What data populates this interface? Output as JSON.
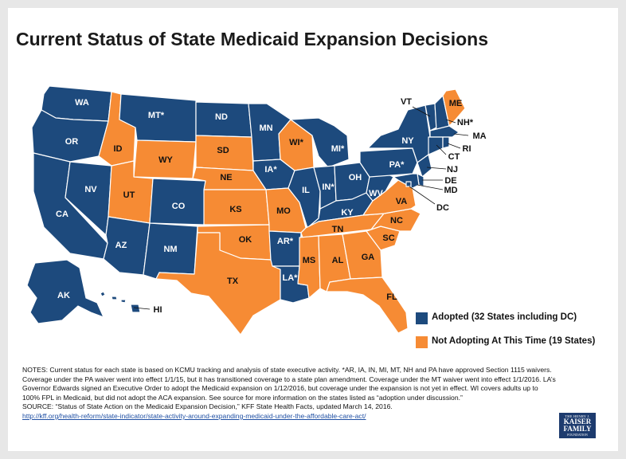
{
  "title": "Current Status of State Medicaid Expansion Decisions",
  "colors": {
    "adopted": "#1d4a7d",
    "not_adopting": "#f68b34"
  },
  "legend": {
    "adopted": "Adopted (32 States including DC)",
    "not_adopting": "Not Adopting At This Time (19 States)"
  },
  "states": {
    "WA": {
      "label": "WA",
      "status": "adopted"
    },
    "OR": {
      "label": "OR",
      "status": "adopted"
    },
    "CA": {
      "label": "CA",
      "status": "adopted"
    },
    "NV": {
      "label": "NV",
      "status": "adopted"
    },
    "ID": {
      "label": "ID",
      "status": "not_adopting"
    },
    "MT": {
      "label": "MT*",
      "status": "adopted"
    },
    "WY": {
      "label": "WY",
      "status": "not_adopting"
    },
    "UT": {
      "label": "UT",
      "status": "not_adopting"
    },
    "AZ": {
      "label": "AZ",
      "status": "adopted"
    },
    "CO": {
      "label": "CO",
      "status": "adopted"
    },
    "NM": {
      "label": "NM",
      "status": "adopted"
    },
    "ND": {
      "label": "ND",
      "status": "adopted"
    },
    "SD": {
      "label": "SD",
      "status": "not_adopting"
    },
    "NE": {
      "label": "NE",
      "status": "not_adopting"
    },
    "KS": {
      "label": "KS",
      "status": "not_adopting"
    },
    "OK": {
      "label": "OK",
      "status": "not_adopting"
    },
    "TX": {
      "label": "TX",
      "status": "not_adopting"
    },
    "MN": {
      "label": "MN",
      "status": "adopted"
    },
    "IA": {
      "label": "IA*",
      "status": "adopted"
    },
    "MO": {
      "label": "MO",
      "status": "not_adopting"
    },
    "AR": {
      "label": "AR*",
      "status": "adopted"
    },
    "LA": {
      "label": "LA*",
      "status": "adopted"
    },
    "WI": {
      "label": "WI*",
      "status": "not_adopting"
    },
    "IL": {
      "label": "IL",
      "status": "adopted"
    },
    "MI": {
      "label": "MI*",
      "status": "adopted"
    },
    "IN": {
      "label": "IN*",
      "status": "adopted"
    },
    "OH": {
      "label": "OH",
      "status": "adopted"
    },
    "KY": {
      "label": "KY",
      "status": "adopted"
    },
    "TN": {
      "label": "TN",
      "status": "not_adopting"
    },
    "MS": {
      "label": "MS",
      "status": "not_adopting"
    },
    "AL": {
      "label": "AL",
      "status": "not_adopting"
    },
    "GA": {
      "label": "GA",
      "status": "not_adopting"
    },
    "FL": {
      "label": "FL",
      "status": "not_adopting"
    },
    "SC": {
      "label": "SC",
      "status": "not_adopting"
    },
    "NC": {
      "label": "NC",
      "status": "not_adopting"
    },
    "VA": {
      "label": "VA",
      "status": "not_adopting"
    },
    "WV": {
      "label": "WV",
      "status": "adopted"
    },
    "PA": {
      "label": "PA*",
      "status": "adopted"
    },
    "NY": {
      "label": "NY",
      "status": "adopted"
    },
    "VT": {
      "label": "VT",
      "status": "adopted"
    },
    "NH": {
      "label": "NH*",
      "status": "adopted"
    },
    "ME": {
      "label": "ME",
      "status": "not_adopting"
    },
    "MA": {
      "label": "MA",
      "status": "adopted"
    },
    "RI": {
      "label": "RI",
      "status": "adopted"
    },
    "CT": {
      "label": "CT",
      "status": "adopted"
    },
    "NJ": {
      "label": "NJ",
      "status": "adopted"
    },
    "DE": {
      "label": "DE",
      "status": "adopted"
    },
    "MD": {
      "label": "MD",
      "status": "adopted"
    },
    "DC": {
      "label": "DC",
      "status": "adopted"
    },
    "AK": {
      "label": "AK",
      "status": "adopted"
    },
    "HI": {
      "label": "HI",
      "status": "adopted"
    }
  },
  "notes": {
    "line1": "NOTES: Current status for each state is based on KCMU tracking and analysis of state executive activity. *AR, IA, IN, MI, MT, NH and PA have approved Section 1115 waivers. Coverage under the PA waiver went into effect 1/1/15, but it has transitioned coverage to a state plan amendment. Coverage under the MT waiver went into effect 1/1/2016. LA’s Governor Edwards signed an Executive Order to adopt the Medicaid expansion on 1/12/2016, but coverage under the expansion is not yet in effect. WI covers adults up to 100% FPL in Medicaid, but did not adopt the ACA expansion.  See source for more information on the states listed as “adoption under discussion.”",
    "source": "SOURCE: “Status of State Action on the Medicaid Expansion Decision,” KFF State Health Facts, updated March 14, 2016.",
    "link": "http://kff.org/health-reform/state-indicator/state-activity-around-expanding-medicaid-under-the-affordable-care-act/"
  },
  "logo": {
    "line1": "THE HENRY J.",
    "line2": "KAISER",
    "line3": "FAMILY",
    "line4": "FOUNDATION"
  }
}
